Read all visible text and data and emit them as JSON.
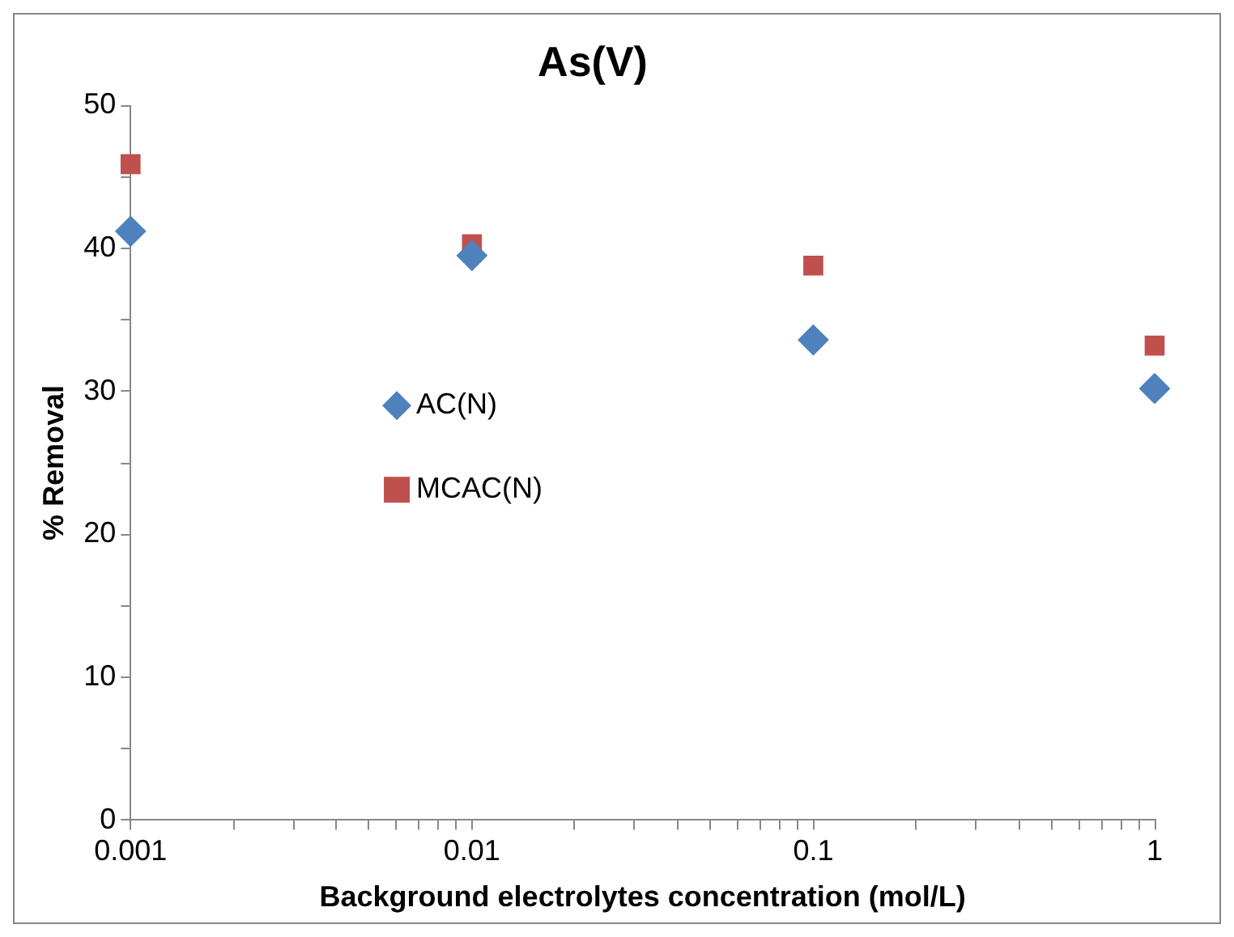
{
  "chart_data": {
    "type": "scatter",
    "title": "As(V)",
    "xlabel": "Background electrolytes concentration (mol/L)",
    "ylabel": "% Removal",
    "x": [
      0.001,
      0.01,
      0.1,
      1
    ],
    "series": [
      {
        "name": "AC(N)",
        "color": "#4f81bd",
        "marker": "diamond",
        "values": [
          41.2,
          39.5,
          33.6,
          30.2
        ]
      },
      {
        "name": "MCAC(N)",
        "color": "#c0504d",
        "marker": "square",
        "values": [
          45.9,
          40.3,
          38.8,
          33.2
        ]
      }
    ],
    "log": "x",
    "xlim": [
      0.001,
      1
    ],
    "xticks": [
      0.001,
      {
        "value": 0.002,
        "label": null
      },
      {
        "value": 0.003,
        "label": null
      },
      {
        "value": 0.004,
        "label": null
      },
      {
        "value": 0.005,
        "label": null
      },
      {
        "value": 0.006,
        "label": null
      },
      {
        "value": 0.007,
        "label": null
      },
      {
        "value": 0.008,
        "label": null
      },
      {
        "value": 0.009,
        "label": null
      },
      0.01,
      {
        "value": 0.02,
        "label": null
      },
      {
        "value": 0.03,
        "label": null
      },
      {
        "value": 0.04,
        "label": null
      },
      {
        "value": 0.05,
        "label": null
      },
      {
        "value": 0.06,
        "label": null
      },
      {
        "value": 0.07,
        "label": null
      },
      {
        "value": 0.08,
        "label": null
      },
      {
        "value": 0.09,
        "label": null
      },
      0.1,
      {
        "value": 0.2,
        "label": null
      },
      {
        "value": 0.3,
        "label": null
      },
      {
        "value": 0.4,
        "label": null
      },
      {
        "value": 0.5,
        "label": null
      },
      {
        "value": 0.6,
        "label": null
      },
      {
        "value": 0.7,
        "label": null
      },
      {
        "value": 0.8,
        "label": null
      },
      {
        "value": 0.9,
        "label": null
      },
      1
    ],
    "ylim": [
      0,
      50
    ],
    "yticks": [
      0,
      {
        "value": 5,
        "label": null
      },
      10,
      {
        "value": 15,
        "label": null
      },
      20,
      {
        "value": 25,
        "label": null
      },
      30,
      {
        "value": 35,
        "label": null
      },
      40,
      {
        "value": 45,
        "label": null
      },
      50
    ],
    "grid": false,
    "legend": "left"
  }
}
